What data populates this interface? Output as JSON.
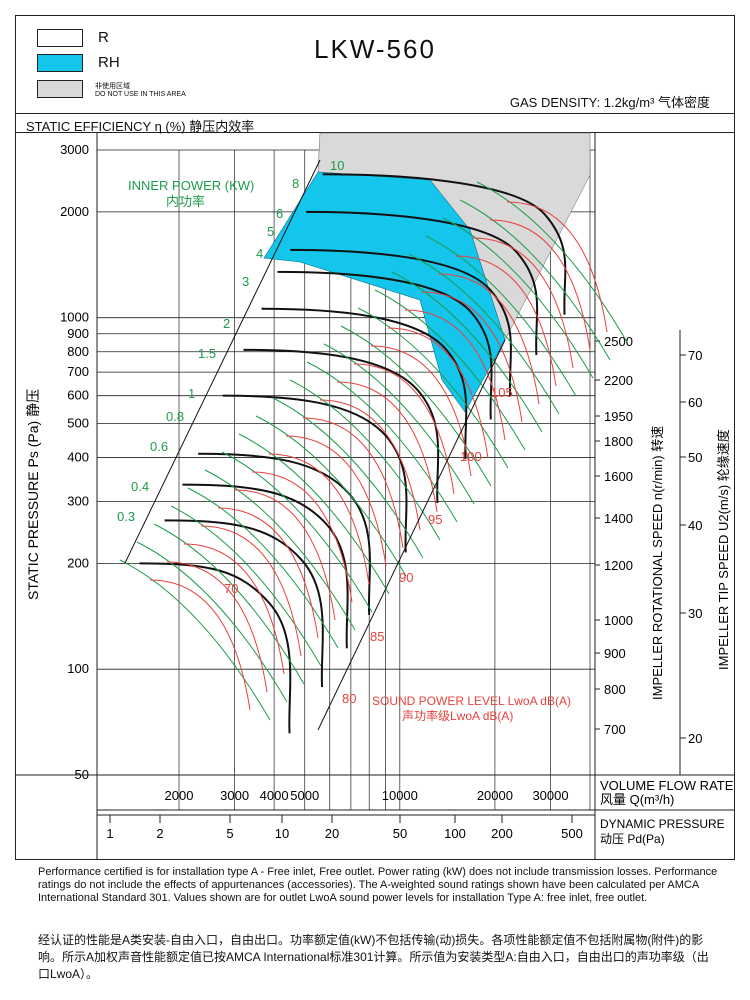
{
  "header": {
    "title": "LKW-560",
    "legend": [
      {
        "label": "R",
        "color": "#ffffff"
      },
      {
        "label": "RH",
        "color": "#14c6ec"
      },
      {
        "label": "非使用区域",
        "sub": "DO NOT USE IN THIS AREA",
        "color": "#d9d9d9"
      }
    ],
    "gas_density": "GAS DENSITY: 1.2kg/m³  气体密度",
    "efficiency_label": "STATIC EFFICIENCY η (%) 静压内效率"
  },
  "chart_data": {
    "type": "line",
    "title": "LKW-560",
    "xlabel": "VOLUME FLOW RATE 风量 Q(m³/h)",
    "ylabel": "STATIC PRESSURE Ps (Pa) 静压",
    "x_scale": "log",
    "y_scale": "log",
    "xlim": [
      1100,
      40000
    ],
    "ylim": [
      50,
      3000
    ],
    "x_ticks": [
      2000,
      3000,
      4000,
      5000,
      10000,
      20000,
      30000
    ],
    "y_ticks": [
      50,
      100,
      200,
      300,
      400,
      500,
      600,
      700,
      800,
      900,
      1000,
      2000,
      3000
    ],
    "dynamic_pressure_ticks": [
      "1",
      "2",
      "5",
      "10",
      "20",
      "50",
      "100",
      "200",
      "500"
    ],
    "dynamic_pressure_label": "DYNAMIC PRESSURE 动压 Pd(Pa)",
    "speed_axis_label": "IMPELLER ROTATIONAL SPEED n(r/min) 转速",
    "speed_ticks": [
      2500,
      2200,
      1950,
      1800,
      1600,
      1400,
      1200,
      1000,
      900,
      800,
      700
    ],
    "tip_speed_axis_label": "IMPELLER TIP SPEED U2(m/s) 轮缘速度",
    "tip_speed_ticks": [
      70,
      60,
      50,
      40,
      30,
      20
    ],
    "inner_power_label": "INNER POWER (KW)",
    "inner_power_label_cn": "内功率",
    "power_labels": [
      "10",
      "8",
      "6",
      "5",
      "4",
      "3",
      "2",
      "1.5",
      "1",
      "0.8",
      "0.6",
      "0.4",
      "0.3"
    ],
    "sound_label": "SOUND POWER LEVEL LwoA dB(A)",
    "sound_label_cn": "声功率级LwoA dB(A)",
    "sound_levels": [
      "70",
      "80",
      "85",
      "90",
      "95",
      "100",
      "105"
    ],
    "fan_speed_curves": [
      {
        "speed": 700,
        "q_start": 1500,
        "ps_start": 200
      },
      {
        "speed": 800,
        "q_start": 1800,
        "ps_start": 265
      },
      {
        "speed": 900,
        "q_start": 2050,
        "ps_start": 335
      },
      {
        "speed": 1000,
        "q_start": 2300,
        "ps_start": 410
      },
      {
        "speed": 1200,
        "q_start": 2750,
        "ps_start": 600
      },
      {
        "speed": 1400,
        "q_start": 3200,
        "ps_start": 810
      },
      {
        "speed": 1600,
        "q_start": 3650,
        "ps_start": 1060
      },
      {
        "speed": 1800,
        "q_start": 4100,
        "ps_start": 1350
      },
      {
        "speed": 1950,
        "q_start": 4500,
        "ps_start": 1560
      },
      {
        "speed": 2200,
        "q_start": 5050,
        "ps_start": 2000
      },
      {
        "speed": 2500,
        "q_start": 5700,
        "ps_start": 2560
      }
    ]
  },
  "notes": {
    "en": "Performance certified is for installation type A - Free inlet, Free outlet. Power rating (kW) does not include transmission losses. Performance ratings do not include the effects of appurtenances (accessories). The A-weighted sound ratings shown have been calculated per AMCA International Standard 301. Values shown are for outlet LwoA sound power levels for installation Type A: free inlet, free outlet.",
    "cn": "经认证的性能是A类安装-自由入口，自由出口。功率额定值(kW)不包括传输(动)损失。各项性能额定值不包括附属物(附件)的影响。所示A加权声音性能额定值已按AMCA International标准301计算。所示值为安装类型A:自由入口，自由出口的声功率级（出口LwoA）。"
  }
}
